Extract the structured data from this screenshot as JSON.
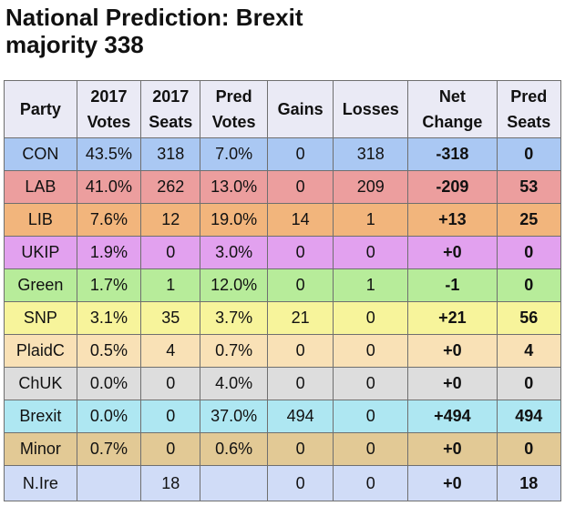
{
  "title": {
    "line1": "National Prediction: Brexit",
    "line2": "majority 338"
  },
  "headers": [
    [
      "Party"
    ],
    [
      "2017",
      "Votes"
    ],
    [
      "2017",
      "Seats"
    ],
    [
      "Pred",
      "Votes"
    ],
    [
      "Gains"
    ],
    [
      "Losses"
    ],
    [
      "Net",
      "Change"
    ],
    [
      "Pred",
      "Seats"
    ]
  ],
  "rows": [
    {
      "color": "#aac8f3",
      "cells": [
        "CON",
        "43.5%",
        "318",
        "7.0%",
        "0",
        "318",
        "-318",
        "0"
      ]
    },
    {
      "color": "#ec9e9e",
      "cells": [
        "LAB",
        "41.0%",
        "262",
        "13.0%",
        "0",
        "209",
        "-209",
        "53"
      ]
    },
    {
      "color": "#f2b57c",
      "cells": [
        "LIB",
        "7.6%",
        "12",
        "19.0%",
        "14",
        "1",
        "+13",
        "25"
      ]
    },
    {
      "color": "#e2a1ef",
      "cells": [
        "UKIP",
        "1.9%",
        "0",
        "3.0%",
        "0",
        "0",
        "+0",
        "0"
      ]
    },
    {
      "color": "#b7ec9a",
      "cells": [
        "Green",
        "1.7%",
        "1",
        "12.0%",
        "0",
        "1",
        "-1",
        "0"
      ]
    },
    {
      "color": "#f7f49b",
      "cells": [
        "SNP",
        "3.1%",
        "35",
        "3.7%",
        "21",
        "0",
        "+21",
        "56"
      ]
    },
    {
      "color": "#f9e1b6",
      "cells": [
        "PlaidC",
        "0.5%",
        "4",
        "0.7%",
        "0",
        "0",
        "+0",
        "4"
      ]
    },
    {
      "color": "#dddddd",
      "cells": [
        "ChUK",
        "0.0%",
        "0",
        "4.0%",
        "0",
        "0",
        "+0",
        "0"
      ]
    },
    {
      "color": "#aee7f2",
      "cells": [
        "Brexit",
        "0.0%",
        "0",
        "37.0%",
        "494",
        "0",
        "+494",
        "494"
      ]
    },
    {
      "color": "#e2c995",
      "cells": [
        "Minor",
        "0.7%",
        "0",
        "0.6%",
        "0",
        "0",
        "+0",
        "0"
      ]
    },
    {
      "color": "#d0dcf7",
      "cells": [
        "N.Ire",
        "",
        "18",
        "",
        "0",
        "0",
        "+0",
        "18"
      ]
    }
  ]
}
